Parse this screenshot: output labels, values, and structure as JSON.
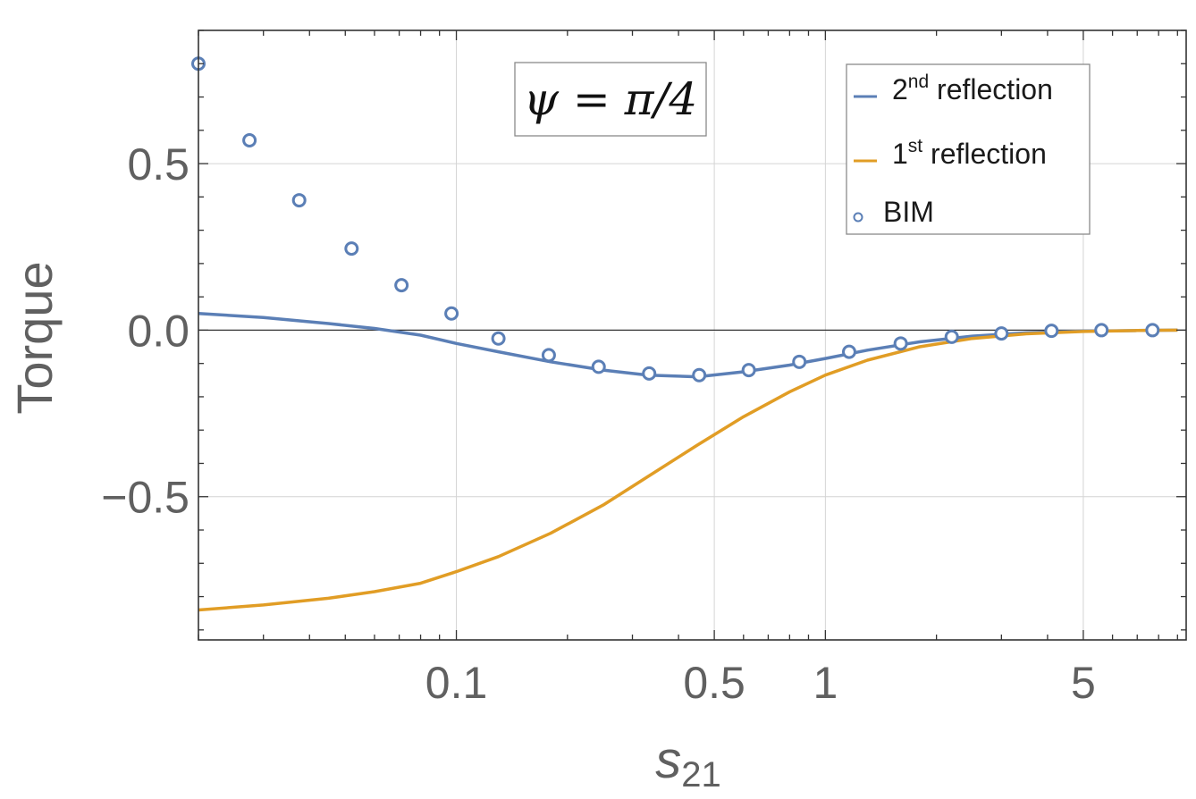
{
  "chart_data": {
    "type": "line",
    "title": "",
    "xlabel": "s",
    "xlabel_subscript": "21",
    "ylabel": "Torque",
    "xscale": "log",
    "xlim": [
      0.02,
      9.5
    ],
    "ylim": [
      -0.93,
      0.9
    ],
    "x_ticks": [
      {
        "value": 0.1,
        "label": "0.1"
      },
      {
        "value": 0.5,
        "label": "0.5"
      },
      {
        "value": 1,
        "label": "1"
      },
      {
        "value": 5,
        "label": "5"
      }
    ],
    "y_ticks": [
      {
        "value": 0.5,
        "label": "0.5"
      },
      {
        "value": 0.0,
        "label": "0.0"
      },
      {
        "value": -0.5,
        "label": "−0.5"
      }
    ],
    "grid": true,
    "annotation": "ψ = π/4",
    "legend": {
      "position": "top-right",
      "entries": [
        {
          "base": "2",
          "sup": "nd",
          "text": " reflection"
        },
        {
          "base": "1",
          "sup": "st",
          "text": " reflection"
        },
        {
          "base": "BIM",
          "sup": "",
          "text": ""
        }
      ]
    },
    "series": [
      {
        "name": "2nd reflection",
        "kind": "line",
        "color": "#5b7fb6",
        "x": [
          0.02,
          0.03,
          0.045,
          0.06,
          0.08,
          0.1,
          0.13,
          0.18,
          0.25,
          0.33,
          0.45,
          0.6,
          0.8,
          1.0,
          1.3,
          1.8,
          2.5,
          3.5,
          5,
          7,
          9
        ],
        "y": [
          0.05,
          0.038,
          0.02,
          0.005,
          -0.015,
          -0.04,
          -0.065,
          -0.095,
          -0.12,
          -0.135,
          -0.14,
          -0.125,
          -0.105,
          -0.085,
          -0.06,
          -0.035,
          -0.018,
          -0.008,
          -0.003,
          -0.001,
          0.0
        ]
      },
      {
        "name": "1st reflection",
        "kind": "line",
        "color": "#e19d25",
        "x": [
          0.02,
          0.03,
          0.045,
          0.06,
          0.08,
          0.1,
          0.13,
          0.18,
          0.25,
          0.33,
          0.45,
          0.6,
          0.8,
          1.0,
          1.3,
          1.8,
          2.5,
          3.5,
          5,
          7,
          9
        ],
        "y": [
          -0.84,
          -0.825,
          -0.805,
          -0.785,
          -0.76,
          -0.725,
          -0.68,
          -0.61,
          -0.525,
          -0.44,
          -0.345,
          -0.26,
          -0.185,
          -0.135,
          -0.09,
          -0.05,
          -0.025,
          -0.011,
          -0.004,
          -0.001,
          0.0
        ]
      },
      {
        "name": "BIM",
        "kind": "scatter",
        "color": "#5b7fb6",
        "x": [
          0.02,
          0.0275,
          0.0375,
          0.052,
          0.071,
          0.097,
          0.13,
          0.178,
          0.243,
          0.333,
          0.455,
          0.62,
          0.85,
          1.16,
          1.6,
          2.2,
          3.0,
          4.1,
          5.6,
          7.7
        ],
        "y": [
          0.8,
          0.57,
          0.39,
          0.245,
          0.135,
          0.05,
          -0.025,
          -0.075,
          -0.11,
          -0.13,
          -0.135,
          -0.12,
          -0.095,
          -0.065,
          -0.04,
          -0.02,
          -0.01,
          -0.002,
          0.0,
          0.0
        ]
      }
    ]
  }
}
